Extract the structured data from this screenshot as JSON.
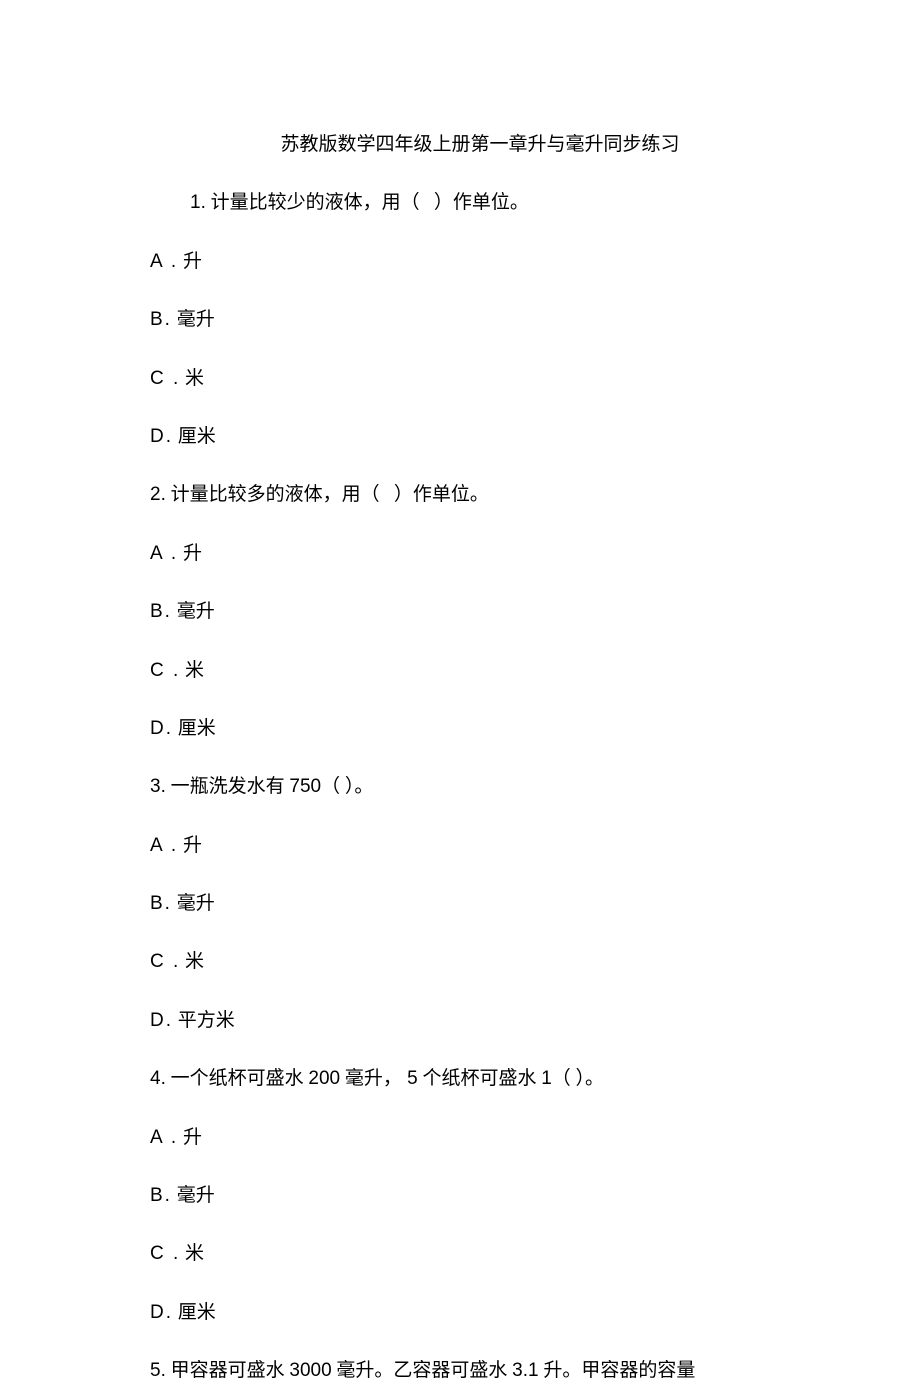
{
  "title": "苏教版数学四年级上册第一章升与毫升同步练习",
  "questions": [
    {
      "num": "1.",
      "text": " 计量比较少的液体，用（   ）作单位。",
      "options": [
        {
          "letter": "A .",
          "text": " 升"
        },
        {
          "letter": "B.",
          "text": " 毫升"
        },
        {
          "letter": "C .",
          "text": " 米"
        },
        {
          "letter": "D.",
          "text": " 厘米"
        }
      ]
    },
    {
      "num": "2.",
      "text": " 计量比较多的液体，用（   ）作单位。",
      "options": [
        {
          "letter": "A .",
          "text": " 升"
        },
        {
          "letter": "B.",
          "text": " 毫升"
        },
        {
          "letter": "C .",
          "text": " 米"
        },
        {
          "letter": "D.",
          "text": " 厘米"
        }
      ]
    },
    {
      "num": "3.",
      "text_before": " 一瓶洗发水有 ",
      "inline_num": "750",
      "text_after": "（ ）。",
      "options": [
        {
          "letter": "A .",
          "text": " 升"
        },
        {
          "letter": "B.",
          "text": " 毫升"
        },
        {
          "letter": "C .",
          "text": " 米"
        },
        {
          "letter": "D.",
          "text": " 平方米"
        }
      ]
    },
    {
      "num": "4.",
      "text_before": " 一个纸杯可盛水 ",
      "inline_num1": "200",
      "text_mid1": " 毫升，",
      "inline_num2": " 5",
      "text_mid2": " 个纸杯可盛水 ",
      "inline_num3": "1",
      "text_after": "（ ）。",
      "options": [
        {
          "letter": "A .",
          "text": " 升"
        },
        {
          "letter": "B.",
          "text": " 毫升"
        },
        {
          "letter": "C .",
          "text": " 米"
        },
        {
          "letter": "D.",
          "text": " 厘米"
        }
      ]
    },
    {
      "num": "5.",
      "text_before": " 甲容器可盛水 ",
      "inline_num1": " 3000",
      "text_mid1": " 毫升。乙容器可盛水 ",
      "inline_num2": "3.1",
      "text_after": " 升。甲容器的容量"
    }
  ]
}
